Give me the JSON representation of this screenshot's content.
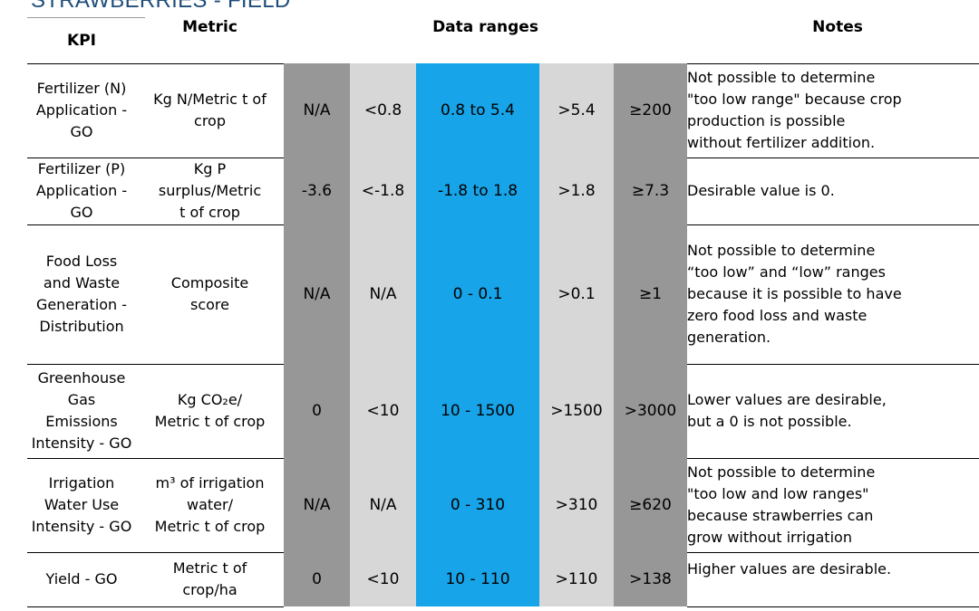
{
  "document": {
    "title": "STRAWBERRIES - FIELD"
  },
  "table": {
    "headers": {
      "kpi": "KPI",
      "metric": "Metric",
      "ranges": "Data ranges",
      "notes": "Notes"
    },
    "rows": [
      {
        "kpi": [
          "Fertilizer (N)",
          "Application -",
          "GO"
        ],
        "metric": [
          "Kg N/Metric t of",
          "crop"
        ],
        "ranges": [
          "N/A",
          "<0.8",
          "0.8 to 5.4",
          ">5.4",
          "≥200"
        ],
        "notes": [
          "Not possible to determine",
          "\"too low range\" because crop",
          "production is possible",
          "without fertilizer addition."
        ]
      },
      {
        "kpi": [
          "Fertilizer (P)",
          "Application -",
          "GO"
        ],
        "metric": [
          "Kg P",
          "surplus/Metric",
          "t of crop"
        ],
        "ranges": [
          "-3.6",
          "<-1.8",
          "-1.8 to 1.8",
          ">1.8",
          "≥7.3"
        ],
        "notes": [
          "Desirable value is 0."
        ]
      },
      {
        "kpi": [
          "Food Loss",
          "and Waste",
          "Generation -",
          "Distribution"
        ],
        "metric": [
          "Composite",
          "score"
        ],
        "ranges": [
          "N/A",
          "N/A",
          "0 - 0.1",
          ">0.1",
          "≥1"
        ],
        "notes": [
          "Not possible to determine",
          "“too low” and “low” ranges",
          "because it is possible to have",
          "zero food loss and waste",
          "generation."
        ]
      },
      {
        "kpi": [
          "Greenhouse",
          "Gas",
          "Emissions",
          "Intensity - GO"
        ],
        "metric": [
          "Kg CO₂e/",
          "Metric t of crop"
        ],
        "ranges": [
          "0",
          "<10",
          "10 - 1500",
          ">1500",
          ">3000"
        ],
        "notes": [
          "Lower values are desirable,",
          "but a 0 is not possible."
        ]
      },
      {
        "kpi": [
          "Irrigation",
          "Water Use",
          "Intensity - GO"
        ],
        "metric": [
          "m³ of irrigation",
          "water/",
          "Metric t of crop"
        ],
        "ranges": [
          "N/A",
          "N/A",
          "0 - 310",
          ">310",
          "≥620"
        ],
        "notes": [
          "Not possible to determine",
          "\"too low and low ranges\"",
          "because strawberries can",
          "grow without irrigation"
        ]
      },
      {
        "kpi": [
          "Yield - GO"
        ],
        "metric": [
          "Metric t of",
          "crop/ha"
        ],
        "ranges": [
          "0",
          "<10",
          "10 - 110",
          ">110",
          ">138"
        ],
        "notes": [
          "Higher values are desirable."
        ]
      }
    ]
  },
  "colors": {
    "range_dark": "#979797",
    "range_light": "#d7d7d7",
    "range_optimal": "#17a4e8",
    "title": "#1e4d7a"
  }
}
